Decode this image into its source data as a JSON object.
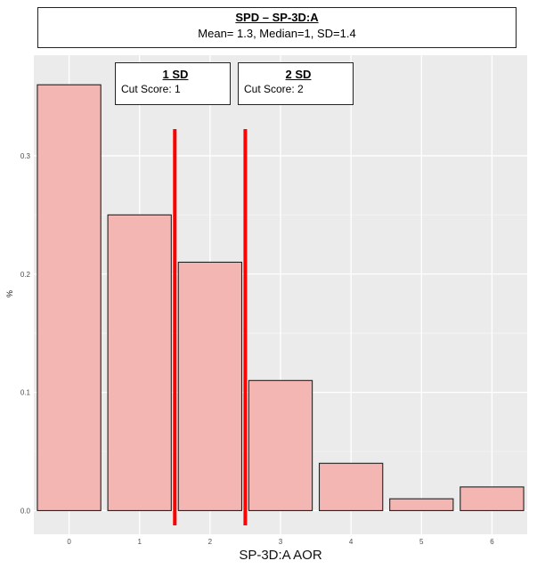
{
  "chart_data": {
    "type": "bar",
    "title": "SPD – SP-3D:A",
    "subtitle": "Mean= 1.3, Median=1, SD=1.4",
    "xlabel": "SP-3D:A AOR",
    "ylabel": "%",
    "categories": [
      "0",
      "1",
      "2",
      "3",
      "4",
      "5",
      "6"
    ],
    "values": [
      0.36,
      0.25,
      0.21,
      0.11,
      0.04,
      0.01,
      0.02
    ],
    "yticks": [
      "0.0",
      "0.1",
      "0.2",
      "0.3"
    ],
    "ytick_values": [
      0.0,
      0.1,
      0.2,
      0.3
    ],
    "ylim": [
      -0.02,
      0.385
    ],
    "xlim": [
      -0.5,
      6.5
    ],
    "grid": true,
    "bar_color": "#f4b6b3",
    "panel_color": "#ebebeb",
    "cut_lines": [
      {
        "x": 1.5,
        "label": "1 SD",
        "sublabel": "Cut Score: 1",
        "color": "#ff0000"
      },
      {
        "x": 2.5,
        "label": "2 SD",
        "sublabel": "Cut Score: 2",
        "color": "#ff0000"
      }
    ]
  }
}
